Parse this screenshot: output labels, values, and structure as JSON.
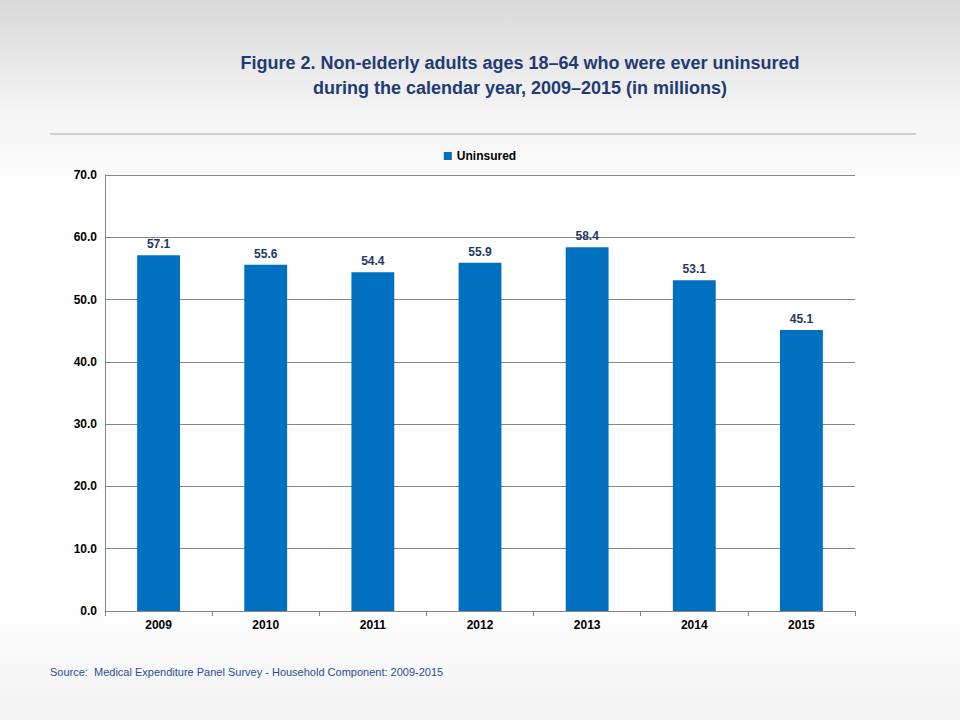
{
  "chart_data": {
    "type": "bar",
    "title": "Figure 2. Non-elderly adults ages 18–64 who were ever uninsured\nduring the calendar year, 2009–2015 (in millions)",
    "source": "Source:  Medical Expenditure Panel Survey - Household Component: 2009-2015",
    "categories": [
      "2009",
      "2010",
      "2011",
      "2012",
      "2013",
      "2014",
      "2015"
    ],
    "series": [
      {
        "name": "Uninsured",
        "color": "#0070c0",
        "values": [
          57.1,
          55.6,
          54.4,
          55.9,
          58.4,
          53.1,
          45.1
        ]
      }
    ],
    "ylim": [
      0,
      70
    ],
    "yticks": [
      {
        "value": 0,
        "label": "0.0"
      },
      {
        "value": 10,
        "label": "10.0"
      },
      {
        "value": 20,
        "label": "20.0"
      },
      {
        "value": 30,
        "label": "30.0"
      },
      {
        "value": 40,
        "label": "40.0"
      },
      {
        "value": 50,
        "label": "50.0"
      },
      {
        "value": 60,
        "label": "60.0"
      },
      {
        "value": 70,
        "label": "70.0"
      }
    ],
    "grid": true,
    "legend": "top",
    "data_labels": true
  }
}
